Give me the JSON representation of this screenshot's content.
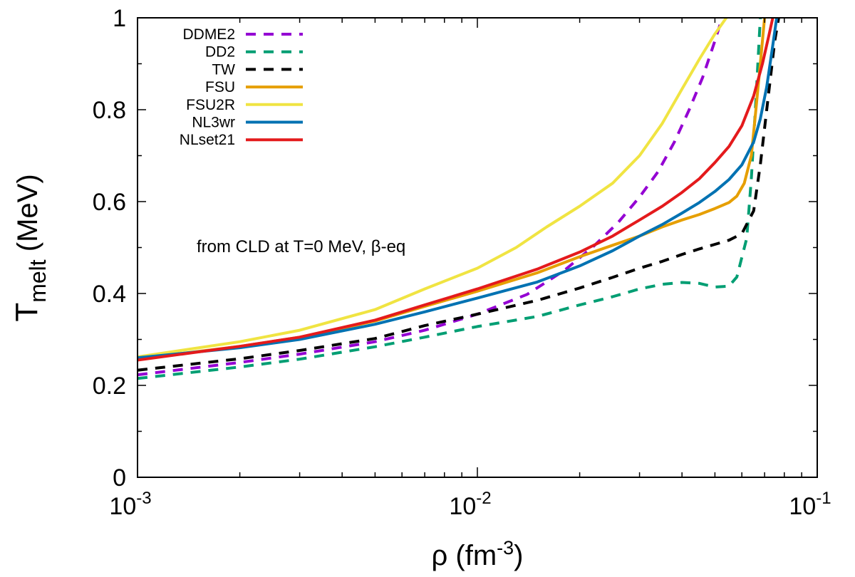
{
  "chart_data": {
    "type": "line",
    "x_scale": "log",
    "xlim": [
      0.001,
      0.1
    ],
    "ylim": [
      0,
      1
    ],
    "xlabel": {
      "main": "ρ (fm",
      "sup": "-3",
      "close": ")"
    },
    "ylabel": {
      "main": "T",
      "sub": "melt",
      "rest": " (MeV)"
    },
    "x_ticks": [
      {
        "value": 0.001,
        "base": "10",
        "exp": "-3"
      },
      {
        "value": 0.01,
        "base": "10",
        "exp": "-2"
      },
      {
        "value": 0.1,
        "base": "10",
        "exp": "-1"
      }
    ],
    "y_ticks": [
      {
        "value": 0,
        "label": "0"
      },
      {
        "value": 0.2,
        "label": "0.2"
      },
      {
        "value": 0.4,
        "label": "0.4"
      },
      {
        "value": 0.6,
        "label": "0.6"
      },
      {
        "value": 0.8,
        "label": "0.8"
      },
      {
        "value": 1,
        "label": "1"
      }
    ],
    "annotation": "from CLD at T=0 MeV, β-eq",
    "legend_position": "top-left",
    "grid": false,
    "series": [
      {
        "name": "DDME2",
        "color": "#9400d3",
        "dash": true,
        "points": [
          [
            0.001,
            0.223
          ],
          [
            0.002,
            0.25
          ],
          [
            0.003,
            0.268
          ],
          [
            0.005,
            0.295
          ],
          [
            0.007,
            0.32
          ],
          [
            0.01,
            0.355
          ],
          [
            0.014,
            0.398
          ],
          [
            0.018,
            0.45
          ],
          [
            0.022,
            0.503
          ],
          [
            0.026,
            0.555
          ],
          [
            0.03,
            0.61
          ],
          [
            0.034,
            0.665
          ],
          [
            0.038,
            0.73
          ],
          [
            0.042,
            0.8
          ],
          [
            0.046,
            0.87
          ],
          [
            0.05,
            0.95
          ],
          [
            0.052,
            0.99
          ],
          [
            0.0525,
            1.0
          ]
        ]
      },
      {
        "name": "DD2",
        "color": "#009e73",
        "dash": true,
        "points": [
          [
            0.001,
            0.215
          ],
          [
            0.002,
            0.24
          ],
          [
            0.003,
            0.257
          ],
          [
            0.005,
            0.284
          ],
          [
            0.007,
            0.305
          ],
          [
            0.01,
            0.328
          ],
          [
            0.015,
            0.35
          ],
          [
            0.02,
            0.375
          ],
          [
            0.025,
            0.393
          ],
          [
            0.03,
            0.41
          ],
          [
            0.035,
            0.42
          ],
          [
            0.04,
            0.424
          ],
          [
            0.045,
            0.422
          ],
          [
            0.05,
            0.414
          ],
          [
            0.055,
            0.416
          ],
          [
            0.058,
            0.436
          ],
          [
            0.062,
            0.52
          ],
          [
            0.064,
            0.65
          ],
          [
            0.066,
            0.82
          ],
          [
            0.068,
            1.0
          ]
        ]
      },
      {
        "name": "TW",
        "color": "#000000",
        "dash": true,
        "points": [
          [
            0.001,
            0.233
          ],
          [
            0.002,
            0.258
          ],
          [
            0.003,
            0.276
          ],
          [
            0.005,
            0.302
          ],
          [
            0.007,
            0.33
          ],
          [
            0.01,
            0.355
          ],
          [
            0.015,
            0.385
          ],
          [
            0.02,
            0.412
          ],
          [
            0.025,
            0.435
          ],
          [
            0.03,
            0.455
          ],
          [
            0.035,
            0.47
          ],
          [
            0.04,
            0.485
          ],
          [
            0.045,
            0.497
          ],
          [
            0.05,
            0.507
          ],
          [
            0.055,
            0.516
          ],
          [
            0.06,
            0.53
          ],
          [
            0.065,
            0.58
          ],
          [
            0.068,
            0.68
          ],
          [
            0.071,
            0.8
          ],
          [
            0.075,
            0.95
          ],
          [
            0.077,
            1.0
          ]
        ]
      },
      {
        "name": "FSU",
        "color": "#e69f00",
        "dash": false,
        "points": [
          [
            0.001,
            0.258
          ],
          [
            0.002,
            0.285
          ],
          [
            0.003,
            0.305
          ],
          [
            0.005,
            0.34
          ],
          [
            0.007,
            0.372
          ],
          [
            0.01,
            0.405
          ],
          [
            0.015,
            0.445
          ],
          [
            0.02,
            0.48
          ],
          [
            0.025,
            0.505
          ],
          [
            0.03,
            0.525
          ],
          [
            0.035,
            0.545
          ],
          [
            0.04,
            0.56
          ],
          [
            0.045,
            0.572
          ],
          [
            0.05,
            0.585
          ],
          [
            0.055,
            0.598
          ],
          [
            0.058,
            0.612
          ],
          [
            0.061,
            0.64
          ],
          [
            0.064,
            0.7
          ],
          [
            0.066,
            0.8
          ],
          [
            0.068,
            0.9
          ],
          [
            0.07,
            1.0
          ]
        ]
      },
      {
        "name": "FSU2R",
        "color": "#f0e442",
        "dash": false,
        "points": [
          [
            0.001,
            0.262
          ],
          [
            0.002,
            0.295
          ],
          [
            0.003,
            0.32
          ],
          [
            0.005,
            0.365
          ],
          [
            0.007,
            0.41
          ],
          [
            0.01,
            0.455
          ],
          [
            0.013,
            0.5
          ],
          [
            0.016,
            0.545
          ],
          [
            0.02,
            0.59
          ],
          [
            0.025,
            0.64
          ],
          [
            0.03,
            0.7
          ],
          [
            0.035,
            0.77
          ],
          [
            0.04,
            0.845
          ],
          [
            0.045,
            0.91
          ],
          [
            0.05,
            0.965
          ],
          [
            0.054,
            1.0
          ]
        ]
      },
      {
        "name": "NL3wr",
        "color": "#0072b2",
        "dash": false,
        "points": [
          [
            0.001,
            0.26
          ],
          [
            0.002,
            0.282
          ],
          [
            0.003,
            0.3
          ],
          [
            0.005,
            0.333
          ],
          [
            0.007,
            0.36
          ],
          [
            0.01,
            0.39
          ],
          [
            0.015,
            0.425
          ],
          [
            0.02,
            0.46
          ],
          [
            0.025,
            0.493
          ],
          [
            0.03,
            0.525
          ],
          [
            0.035,
            0.55
          ],
          [
            0.04,
            0.575
          ],
          [
            0.045,
            0.598
          ],
          [
            0.05,
            0.622
          ],
          [
            0.055,
            0.648
          ],
          [
            0.06,
            0.68
          ],
          [
            0.065,
            0.73
          ],
          [
            0.068,
            0.78
          ],
          [
            0.071,
            0.85
          ],
          [
            0.074,
            0.94
          ],
          [
            0.076,
            1.0
          ]
        ]
      },
      {
        "name": "NLset21",
        "color": "#e41a1c",
        "dash": false,
        "points": [
          [
            0.001,
            0.255
          ],
          [
            0.002,
            0.285
          ],
          [
            0.003,
            0.305
          ],
          [
            0.005,
            0.342
          ],
          [
            0.007,
            0.375
          ],
          [
            0.01,
            0.41
          ],
          [
            0.015,
            0.453
          ],
          [
            0.02,
            0.49
          ],
          [
            0.025,
            0.525
          ],
          [
            0.03,
            0.56
          ],
          [
            0.035,
            0.59
          ],
          [
            0.04,
            0.62
          ],
          [
            0.045,
            0.65
          ],
          [
            0.05,
            0.685
          ],
          [
            0.055,
            0.72
          ],
          [
            0.06,
            0.765
          ],
          [
            0.065,
            0.83
          ],
          [
            0.069,
            0.9
          ],
          [
            0.072,
            0.96
          ],
          [
            0.074,
            1.0
          ]
        ]
      }
    ]
  }
}
